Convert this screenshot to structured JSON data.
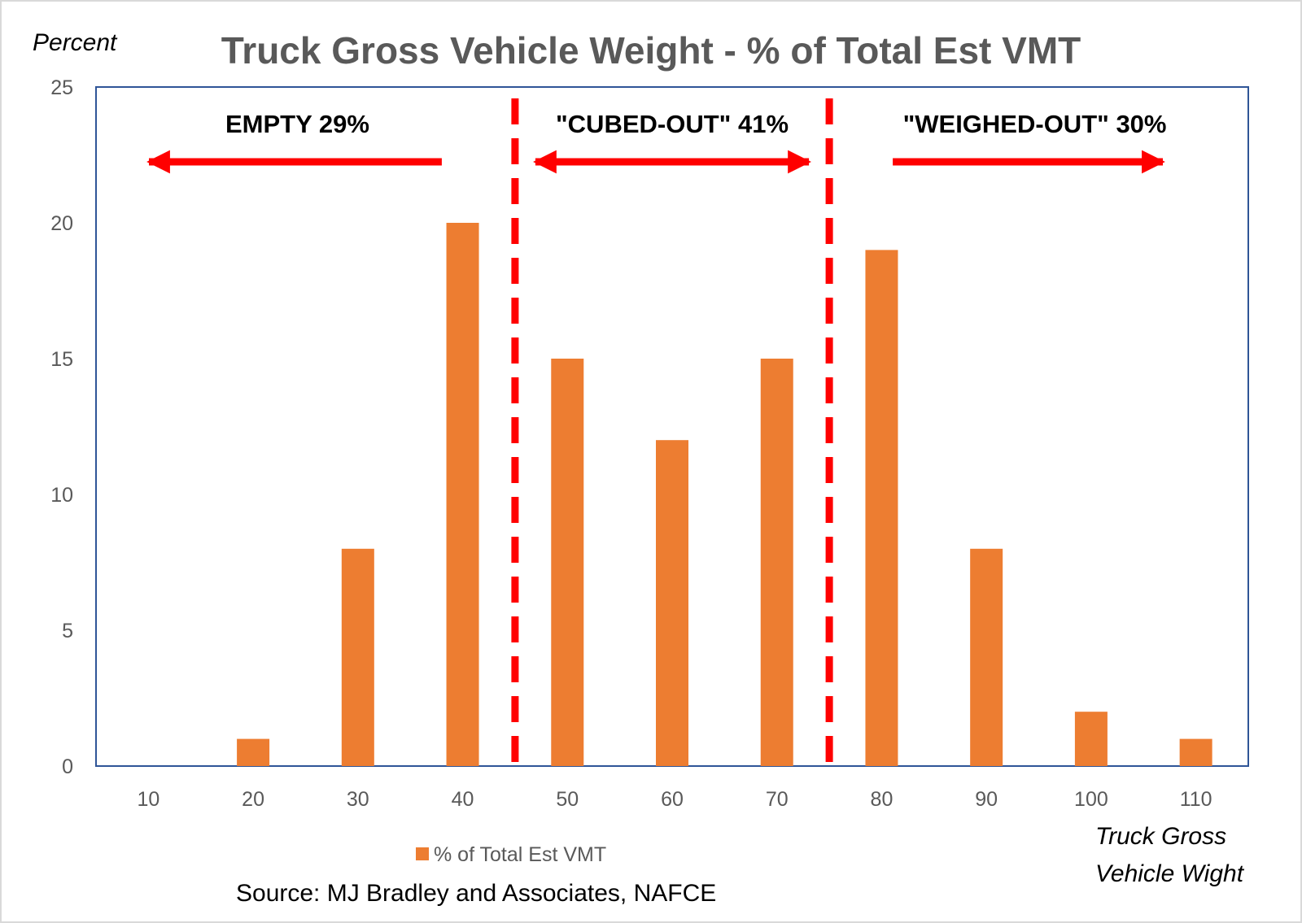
{
  "chart_data": {
    "type": "bar",
    "title": "Truck Gross Vehicle Weight - % of Total Est VMT",
    "ylabel": "Percent",
    "xlabel_lines": [
      "Truck Gross",
      "Vehicle Wight"
    ],
    "categories": [
      "10",
      "20",
      "30",
      "40",
      "50",
      "60",
      "70",
      "80",
      "90",
      "100",
      "110"
    ],
    "series": [
      {
        "name": "% of Total Est VMT",
        "values": [
          0,
          1,
          8,
          20,
          15,
          12,
          15,
          19,
          8,
          2,
          1
        ]
      }
    ],
    "ylim": [
      0,
      25
    ],
    "yticks": [
      "0",
      "5",
      "10",
      "15",
      "20",
      "25"
    ],
    "grid": false,
    "legend": "bottom",
    "colors": {
      "bar": "#ED7D31",
      "axis_box": "#2F5597",
      "annotation": "#FF0000",
      "title": "#595959",
      "tick": "#595959"
    },
    "annotations": {
      "divider_after_categories": [
        40,
        70
      ],
      "regions": [
        {
          "label": "EMPTY 29%",
          "arrow": "left"
        },
        {
          "label": "\"CUBED-OUT\" 41%",
          "arrow": "both"
        },
        {
          "label": "\"WEIGHED-OUT\" 30%",
          "arrow": "right"
        }
      ]
    },
    "source": "Source: MJ Bradley and Associates, NAFCE"
  }
}
